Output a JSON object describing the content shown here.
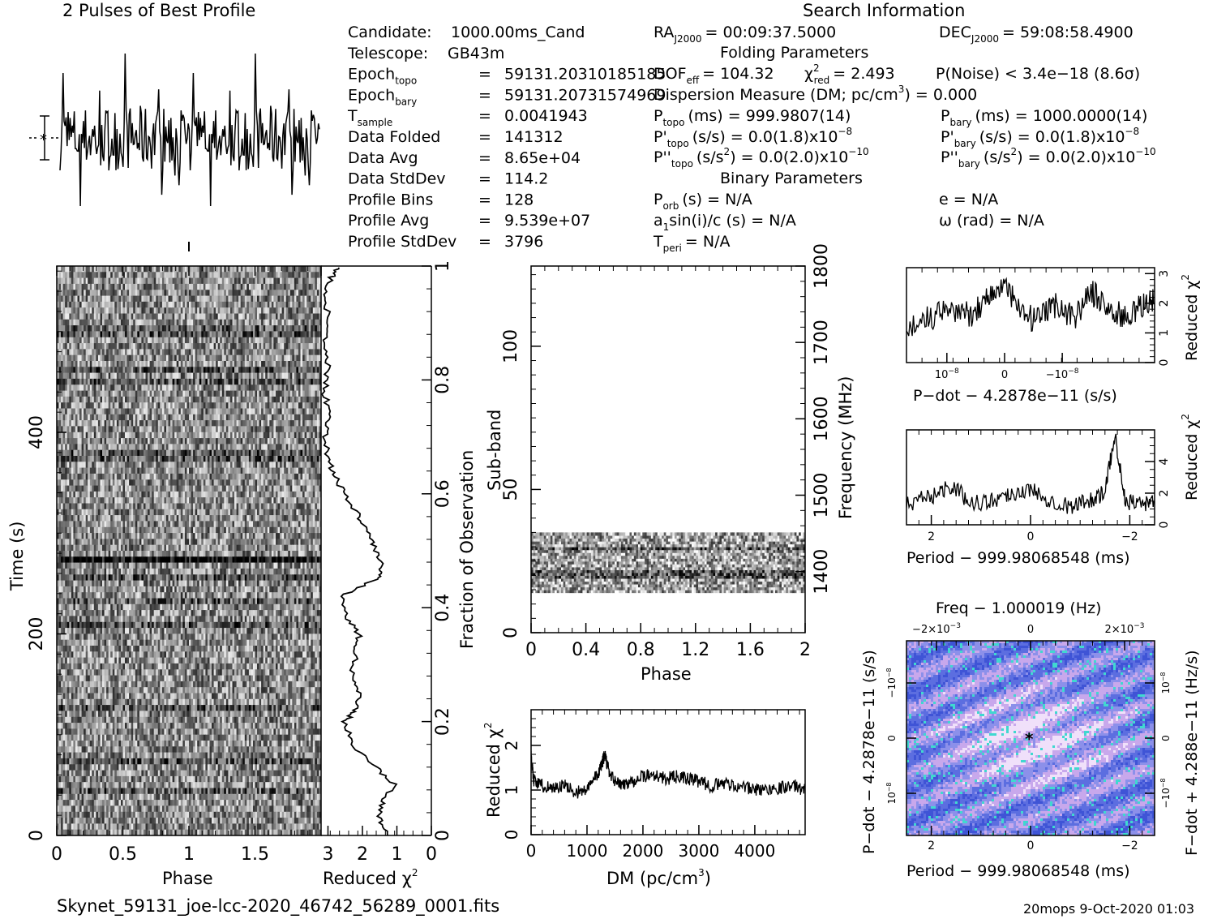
{
  "title_left": "2 Pulses of Best Profile",
  "title_right": "Search Information",
  "candidate_info": [
    {
      "label": "Candidate:",
      "sub": "",
      "eq": "",
      "value": "1000.00ms_Cand"
    },
    {
      "label": "Telescope:",
      "sub": "",
      "eq": "",
      "value": "GB43m"
    },
    {
      "label": "Epoch",
      "sub": "topo",
      "eq": "=",
      "value": "59131.20310185185"
    },
    {
      "label": "Epoch",
      "sub": "bary",
      "eq": "=",
      "value": "59131.20731574969"
    },
    {
      "label": "T",
      "sub": "sample",
      "eq": "=",
      "value": "0.0041943"
    },
    {
      "label": "Data Folded",
      "sub": "",
      "eq": "=",
      "value": "141312"
    },
    {
      "label": "Data Avg",
      "sub": "",
      "eq": "=",
      "value": "8.65e+04"
    },
    {
      "label": "Data StdDev",
      "sub": "",
      "eq": "=",
      "value": "114.2"
    },
    {
      "label": "Profile Bins",
      "sub": "",
      "eq": "=",
      "value": "128"
    },
    {
      "label": "Profile Avg",
      "sub": "",
      "eq": "=",
      "value": "9.539e+07"
    },
    {
      "label": "Profile StdDev",
      "sub": "",
      "eq": "=",
      "value": "3796"
    }
  ],
  "search_info": {
    "ra": {
      "label": "RA",
      "sub": "J2000",
      "value": "= 00:09:37.5000"
    },
    "dec": {
      "label": "DEC",
      "sub": "J2000",
      "value": "= 59:08:58.4900"
    },
    "folding_header": "Folding Parameters",
    "dof": {
      "label": "DOF",
      "sub": "eff",
      "value": "= 104.32"
    },
    "chi": {
      "sym": "χ",
      "sup": "2",
      "sub": "red",
      "value": "= 2.493"
    },
    "pnoise": "P(Noise) < 3.4e−18   (8.6σ)",
    "dm_line": {
      "text": "Dispersion Measure (DM; pc/cm",
      "sup": "3",
      "end": ") = 0.000"
    },
    "ptopo": {
      "label": "P",
      "sub": "topo",
      "value": "(ms) =   999.9807(14)"
    },
    "pbary": {
      "label": "P",
      "sub": "bary",
      "value": "(ms) =   1000.0000(14)"
    },
    "pdtopo": {
      "label": "P'",
      "sub": "topo",
      "value": "(s/s) = 0.0(1.8)x10",
      "exp": "−8"
    },
    "pdbary": {
      "label": "P'",
      "sub": "bary",
      "value": "(s/s) = 0.0(1.8)x10",
      "exp": "−8"
    },
    "pddtopo": {
      "label": "P''",
      "sub": "topo",
      "value_a": "(s/s",
      "sup": "2",
      "value_b": ") = 0.0(2.0)x10",
      "exp": "−10"
    },
    "pddbary": {
      "label": "P''",
      "sub": "bary",
      "value_a": "(s/s",
      "sup": "2",
      "value_b": ") = 0.0(2.0)x10",
      "exp": "−10"
    },
    "binary_header": "Binary Parameters",
    "porb": {
      "label": "P",
      "sub": "orb",
      "value": "(s) = N/A"
    },
    "asini": {
      "label_a": "a",
      "sub": "1",
      "label_b": "sin(i)/c (s) = N/A"
    },
    "tperi": {
      "label": "T",
      "sub": "peri",
      "value": "= N/A"
    },
    "ecc": "e = N/A",
    "omega": "ω (rad) = N/A"
  },
  "footer": {
    "filename": "Skynet_59131_joe-lcc-2020_46742_56289_0001.fits",
    "stamp": "20mops  9-Oct-2020 01:03"
  },
  "colors": {
    "ink": "#000000",
    "ppdot_bg": "#6a78e0",
    "ppdot_hi": "#e0b8f0",
    "ppdot_teal": "#40d8d0"
  },
  "chart_data": [
    {
      "id": "pulse_profile",
      "type": "line",
      "title": "2 Pulses of Best Profile",
      "x_label": "",
      "y_label": "",
      "xlim": [
        0,
        2
      ],
      "ylim": [
        -1,
        1
      ],
      "bins_per_pulse": 128,
      "pulses": 2,
      "errorbar": "1-sigma bar with asterisk at mean",
      "peak_marker_phase": 1.0
    },
    {
      "id": "time_phase",
      "type": "heatmap",
      "xlabel": "Phase",
      "ylabel": "Time (s)",
      "x_ticks": [
        "0",
        "0.5",
        "1",
        "1.5"
      ],
      "x_range": [
        0,
        2
      ],
      "y_ticks": [
        "0",
        "200",
        "400"
      ],
      "y_range": [
        0,
        565
      ],
      "colormap": "grayscale",
      "dark_row_time_s": 277,
      "right_axis_label": "Fraction of Observation",
      "right_ticks": [
        "0",
        "0.2",
        "0.4",
        "0.6",
        "0.8",
        "1"
      ]
    },
    {
      "id": "time_chi2",
      "type": "line",
      "xlabel": "Reduced χ2",
      "x_ticks": [
        "3",
        "2",
        "1",
        "0"
      ],
      "x_range": [
        3.2,
        0
      ],
      "y_range": [
        0,
        1
      ],
      "fraction": [
        0.0,
        0.03,
        0.06,
        0.09,
        0.12,
        0.16,
        0.2,
        0.22,
        0.25,
        0.28,
        0.32,
        0.35,
        0.38,
        0.42,
        0.45,
        0.47,
        0.5,
        0.53,
        0.56,
        0.6,
        0.63,
        0.66,
        0.7,
        0.74,
        0.78,
        0.82,
        0.86,
        0.9,
        0.94,
        0.98,
        1.0
      ],
      "values": [
        1.3,
        1.5,
        1.4,
        1.1,
        1.6,
        2.3,
        2.5,
        2.2,
        2.1,
        2.3,
        2.2,
        2.1,
        2.4,
        2.6,
        1.6,
        1.45,
        1.6,
        1.8,
        2.1,
        2.5,
        2.8,
        3.0,
        3.1,
        2.95,
        3.1,
        3.0,
        3.15,
        2.95,
        3.1,
        2.9,
        2.7
      ]
    },
    {
      "id": "subband_phase",
      "type": "heatmap",
      "xlabel": "Phase",
      "ylabel": "Sub-band",
      "x_ticks": [
        "0",
        "0.4",
        "0.8",
        "1.2",
        "1.6",
        "2"
      ],
      "x_range": [
        0,
        2
      ],
      "y_ticks": [
        "0",
        "50",
        "100"
      ],
      "y_range": [
        0,
        128
      ],
      "data_subband_range": [
        14,
        35
      ],
      "right_axis_label": "Frequency (MHz)",
      "right_ticks": [
        "1400",
        "1500",
        "1600",
        "1700",
        "1800"
      ],
      "freq_range_mhz": [
        1320,
        1800
      ],
      "colormap": "grayscale"
    },
    {
      "id": "dm_chi2",
      "type": "line",
      "xlabel": "DM (pc/cm3)",
      "ylabel": "Reduced χ2",
      "x_ticks": [
        "0",
        "1000",
        "2000",
        "3000",
        "4000"
      ],
      "x_range": [
        0,
        4900
      ],
      "y_ticks": [
        "0",
        "1",
        "2"
      ],
      "y_range": [
        0,
        2.8
      ],
      "dm": [
        0,
        50,
        200,
        400,
        600,
        800,
        1000,
        1150,
        1250,
        1320,
        1400,
        1600,
        1800,
        2000,
        2200,
        2400,
        2600,
        2800,
        3000,
        3200,
        3500,
        3800,
        4100,
        4400,
        4700,
        4900
      ],
      "values": [
        1.8,
        1.2,
        1.1,
        1.05,
        1.1,
        0.95,
        1.0,
        1.3,
        1.5,
        1.8,
        1.35,
        1.1,
        1.2,
        1.3,
        1.35,
        1.25,
        1.3,
        1.25,
        1.2,
        1.1,
        1.15,
        1.05,
        1.0,
        1.05,
        1.1,
        1.0
      ]
    },
    {
      "id": "pdot_chi2",
      "type": "line",
      "xlabel": "P−dot − 4.2878e−11 (s/s)",
      "ylabel": "Reduced χ2",
      "x_ticks": [
        "10−8",
        "0",
        "−10−8"
      ],
      "x_range": [
        1.7e-08,
        -2.6e-08
      ],
      "y_ticks": [
        "0",
        "1",
        "2",
        "3"
      ],
      "y_range": [
        0,
        3.2
      ],
      "x": [
        1.7e-08,
        1.3e-08,
        9e-09,
        6e-09,
        3e-09,
        0,
        -3e-09,
        -6e-09,
        -9e-09,
        -1.2e-08,
        -1.5e-08,
        -1.8e-08,
        -2.1e-08,
        -2.4e-08,
        -2.6e-08
      ],
      "values": [
        1.2,
        1.5,
        1.8,
        1.6,
        2.2,
        2.6,
        1.6,
        1.4,
        2.0,
        1.5,
        2.4,
        1.8,
        1.5,
        1.9,
        2.2
      ]
    },
    {
      "id": "period_chi2",
      "type": "line",
      "xlabel": "Period − 999.98068548 (ms)",
      "ylabel": "Reduced χ2",
      "x_ticks": [
        "2",
        "0",
        "−2"
      ],
      "x_range": [
        2.5,
        -2.5
      ],
      "y_ticks": [
        "0",
        "2",
        "4"
      ],
      "y_range": [
        0,
        6
      ],
      "x": [
        2.5,
        2.0,
        1.6,
        1.2,
        0.8,
        0.4,
        0.0,
        -0.4,
        -0.8,
        -1.2,
        -1.5,
        -1.7,
        -1.9,
        -2.2,
        -2.5
      ],
      "values": [
        1.3,
        1.8,
        2.5,
        1.4,
        1.5,
        2.0,
        2.2,
        1.6,
        1.1,
        1.6,
        2.0,
        5.8,
        1.5,
        1.4,
        1.3
      ]
    },
    {
      "id": "ppdot_grid",
      "type": "heatmap",
      "title": "Freq − 1.000019 (Hz)",
      "xlabel": "Period − 999.98068548 (ms)",
      "ylabel": "P−dot − 4.2878e−11 (s/s)",
      "right_label": "F−dot + 4.288e−11 (Hz/s)",
      "x_ticks": [
        "2",
        "0",
        "−2"
      ],
      "x_range": [
        2.5,
        -2.5
      ],
      "top_ticks": [
        "−2×10−3",
        "0",
        "2×10−3"
      ],
      "y_ticks": [
        "−10−8",
        "0",
        "10−8"
      ],
      "right_ticks": [
        "10−8",
        "0",
        "−10−8"
      ],
      "best_marker": [
        0,
        0
      ],
      "colormap": "blue-violet-white with teal streaks"
    }
  ]
}
